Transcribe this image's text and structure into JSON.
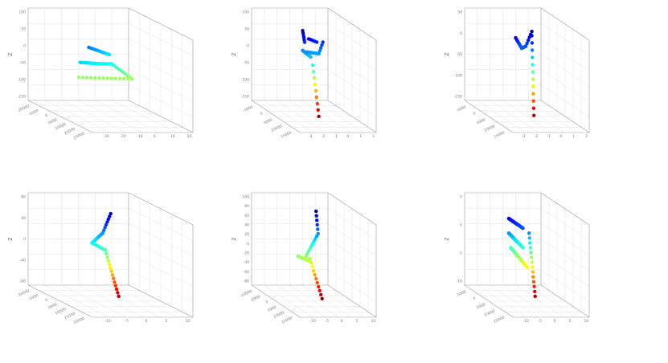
{
  "chart_data": [
    {
      "type": "scatter",
      "projection": "3d",
      "grid": true,
      "colormap": "jet",
      "zlabel": "Z",
      "zlim": [
        -160,
        110
      ],
      "z_ticks": [
        "100",
        "50",
        "0",
        "-50",
        "-100",
        "-150"
      ],
      "x_ticks": [
        "-10000",
        "-5000",
        "0",
        "5000",
        "10000",
        "15000",
        "20000"
      ],
      "y_ticks": [
        "-30",
        "-20",
        "-10",
        "0",
        "10",
        "20"
      ],
      "segments": [
        {
          "from": [
            -12000,
            10,
            20
          ],
          "to": [
            -4000,
            5,
            10
          ],
          "n": 15
        },
        {
          "from": [
            -4000,
            5,
            10
          ],
          "to": [
            3000,
            0,
            3
          ],
          "n": 14
        },
        {
          "from": [
            3000,
            0,
            3
          ],
          "to": [
            9000,
            5,
            -35
          ],
          "n": 10
        },
        {
          "from": [
            9000,
            5,
            -35
          ],
          "to": [
            -11000,
            5,
            -30
          ],
          "n": 14
        },
        {
          "from": [
            -4000,
            -5,
            45
          ],
          "to": [
            6000,
            -12,
            15
          ],
          "n": 12
        }
      ]
    },
    {
      "type": "scatter",
      "projection": "3d",
      "grid": true,
      "colormap": "jet",
      "zlabel": "Z",
      "zlim": [
        -170,
        110
      ],
      "z_ticks": [
        "100",
        "50",
        "0",
        "-50",
        "-100",
        "-150"
      ],
      "x_ticks": [
        "-5000",
        "0",
        "5000",
        "10000",
        "15000"
      ],
      "y_ticks": [
        "-3",
        "-2",
        "-1",
        "0",
        "1",
        "2"
      ],
      "segments": [
        {
          "from": [
            -3000,
            0,
            100
          ],
          "to": [
            -2000,
            0,
            65
          ],
          "n": 6
        },
        {
          "from": [
            0,
            0,
            75
          ],
          "to": [
            4000,
            0,
            65
          ],
          "n": 6
        },
        {
          "from": [
            -3000,
            0,
            40
          ],
          "to": [
            1000,
            0,
            20
          ],
          "n": 14
        },
        {
          "from": [
            -1000,
            0,
            35
          ],
          "to": [
            5000,
            0,
            30
          ],
          "n": 14
        },
        {
          "from": [
            5000,
            0,
            30
          ],
          "to": [
            7000,
            0,
            65
          ],
          "n": 5
        },
        {
          "from": [
            2000,
            0,
            -5
          ],
          "to": [
            5000,
            0,
            -160
          ],
          "n": 9
        }
      ]
    },
    {
      "type": "scatter",
      "projection": "3d",
      "grid": true,
      "colormap": "jet",
      "zlabel": "Z",
      "zlim": [
        -160,
        60
      ],
      "z_ticks": [
        "50",
        "0",
        "-50",
        "-100",
        "-150"
      ],
      "x_ticks": [
        "-5000",
        "0",
        "5000",
        "10000",
        "15000"
      ],
      "y_ticks": [
        "-3",
        "-2",
        "-1",
        "0",
        "1",
        "2"
      ],
      "segments": [
        {
          "from": [
            -3000,
            0,
            35
          ],
          "to": [
            0,
            0,
            10
          ],
          "n": 10
        },
        {
          "from": [
            0,
            0,
            10
          ],
          "to": [
            2000,
            0,
            15
          ],
          "n": 8
        },
        {
          "from": [
            2000,
            0,
            15
          ],
          "to": [
            5000,
            0,
            50
          ],
          "n": 6
        },
        {
          "from": [
            5000,
            0,
            40
          ],
          "to": [
            6000,
            0,
            -150
          ],
          "n": 12
        }
      ]
    },
    {
      "type": "scatter",
      "projection": "3d",
      "grid": true,
      "colormap": "jet",
      "zlabel": "Z",
      "zlim": [
        -100,
        90
      ],
      "z_ticks": [
        "80",
        "40",
        "0",
        "-40",
        "-80"
      ],
      "x_ticks": [
        "-10000",
        "-5000",
        "0",
        "5000",
        "10000",
        "15000",
        "20000"
      ],
      "y_ticks": [
        "-10",
        "-5",
        "0",
        "5",
        "10"
      ],
      "segments": [
        {
          "from": [
            5000,
            0,
            80
          ],
          "to": [
            2000,
            0,
            40
          ],
          "n": 8
        },
        {
          "from": [
            2000,
            0,
            40
          ],
          "to": [
            -2000,
            0,
            20
          ],
          "n": 12
        },
        {
          "from": [
            -2000,
            0,
            20
          ],
          "to": [
            3000,
            0,
            5
          ],
          "n": 14
        },
        {
          "from": [
            3000,
            0,
            5
          ],
          "to": [
            8000,
            0,
            -90
          ],
          "n": 14
        }
      ]
    },
    {
      "type": "scatter",
      "projection": "3d",
      "grid": true,
      "colormap": "jet",
      "zlabel": "Z",
      "zlim": [
        -85,
        100
      ],
      "z_ticks": [
        "100",
        "80",
        "60",
        "40",
        "20",
        "0",
        "-20",
        "-40",
        "-60",
        "-80"
      ],
      "x_ticks": [
        "-10000",
        "-5000",
        "0",
        "5000",
        "10000",
        "15000"
      ],
      "y_ticks": [
        "-10",
        "-5",
        "0",
        "5",
        "10"
      ],
      "segments": [
        {
          "from": [
            6000,
            0,
            95
          ],
          "to": [
            7000,
            0,
            50
          ],
          "n": 6
        },
        {
          "from": [
            7000,
            0,
            50
          ],
          "to": [
            1000,
            0,
            5
          ],
          "n": 10
        },
        {
          "from": [
            -3000,
            0,
            5
          ],
          "to": [
            3000,
            0,
            -5
          ],
          "n": 26
        },
        {
          "from": [
            3000,
            0,
            0
          ],
          "to": [
            9000,
            0,
            -80
          ],
          "n": 11
        }
      ]
    },
    {
      "type": "scatter",
      "projection": "3d",
      "grid": true,
      "colormap": "jet",
      "zlabel": "Z",
      "zlim": [
        -12,
        7
      ],
      "z_ticks": [
        "5",
        "0",
        "-5",
        "-10"
      ],
      "x_ticks": [
        "-5000",
        "0",
        "5000",
        "10000",
        "15000"
      ],
      "y_ticks": [
        "-10",
        "-5",
        "0",
        "5",
        "10"
      ],
      "segments": [
        {
          "from": [
            -4000,
            0,
            5
          ],
          "to": [
            3000,
            0,
            3
          ],
          "n": 40
        },
        {
          "from": [
            -4000,
            0,
            2
          ],
          "to": [
            3000,
            0,
            -1
          ],
          "n": 50
        },
        {
          "from": [
            -3000,
            0,
            -1
          ],
          "to": [
            5000,
            0,
            -5
          ],
          "n": 40
        },
        {
          "from": [
            6000,
            0,
            2
          ],
          "to": [
            9000,
            0,
            -11
          ],
          "n": 14
        }
      ]
    }
  ]
}
